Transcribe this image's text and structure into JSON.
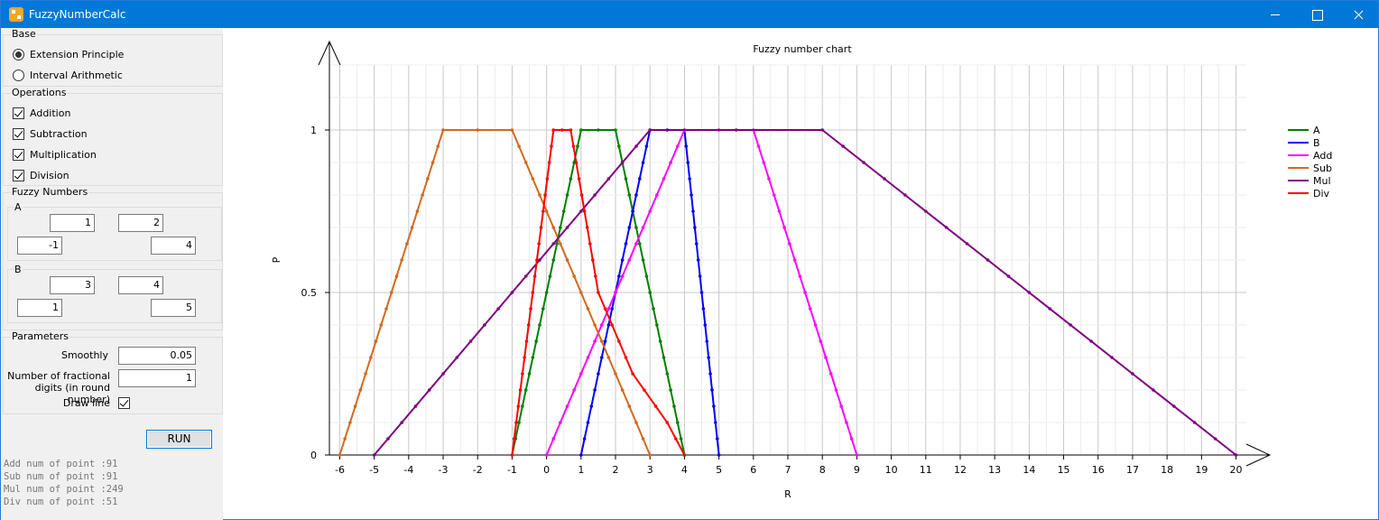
{
  "window": {
    "title": "FuzzyNumberCalc"
  },
  "base": {
    "label": "Base",
    "options": [
      {
        "label": "Extension Principle",
        "selected": true
      },
      {
        "label": "Interval Arithmetic",
        "selected": false
      }
    ]
  },
  "operations": {
    "label": "Operations",
    "items": [
      {
        "label": "Addition",
        "checked": true
      },
      {
        "label": "Subtraction",
        "checked": true
      },
      {
        "label": "Multiplication",
        "checked": true
      },
      {
        "label": "Division",
        "checked": true
      }
    ]
  },
  "fuzzy_numbers": {
    "label": "Fuzzy Numbers",
    "A": {
      "label": "A",
      "core_left": "1",
      "core_right": "2",
      "support_left": "-1",
      "support_right": "4"
    },
    "B": {
      "label": "B",
      "core_left": "3",
      "core_right": "4",
      "support_left": "1",
      "support_right": "5"
    }
  },
  "parameters": {
    "label": "Parameters",
    "smoothly_label": "Smoothly",
    "smoothly_value": "0.05",
    "digits_label_1": "Number of fractional",
    "digits_label_2": "digits (in round number)",
    "digits_value": "1",
    "draw_line_label": "Draw line",
    "draw_line_checked": true
  },
  "run_label": "RUN",
  "log": [
    "Add num of point :91",
    "Sub num of point :91",
    "Mul num of point :249",
    "Div num of point :51"
  ],
  "chart_data": {
    "type": "line",
    "title": "Fuzzy number chart",
    "xlabel": "R",
    "ylabel": "P",
    "xlim": [
      -6.3,
      20.3
    ],
    "ylim": [
      0,
      1.2
    ],
    "x_ticks": [
      "-6",
      "-5",
      "-4",
      "-3",
      "-2",
      "-1",
      "0",
      "1",
      "2",
      "3",
      "4",
      "5",
      "6",
      "7",
      "8",
      "9",
      "10",
      "11",
      "12",
      "13",
      "14",
      "15",
      "16",
      "17",
      "18",
      "19",
      "20"
    ],
    "y_ticks": [
      "0",
      "0.5",
      "1"
    ],
    "grid": true,
    "legend_position": "top-right",
    "series": [
      {
        "name": "A",
        "color": "#008000",
        "x": [
          -1,
          1,
          2,
          4
        ],
        "y": [
          0,
          1,
          1,
          0
        ]
      },
      {
        "name": "B",
        "color": "#0000ff",
        "x": [
          1,
          3,
          4,
          5
        ],
        "y": [
          0,
          1,
          1,
          0
        ]
      },
      {
        "name": "Add",
        "color": "#ff00ff",
        "x": [
          0,
          4,
          6,
          9
        ],
        "y": [
          0,
          1,
          1,
          0
        ]
      },
      {
        "name": "Sub",
        "color": "#d2691e",
        "x": [
          -6,
          -3,
          -1,
          3
        ],
        "y": [
          0,
          1,
          1,
          0
        ]
      },
      {
        "name": "Mul",
        "color": "#800080",
        "x": [
          -5,
          3,
          8,
          20
        ],
        "y": [
          0,
          1,
          1,
          0
        ]
      },
      {
        "name": "Div",
        "color": "#ff0000",
        "x": [
          -1,
          0.2,
          0.7,
          1.5,
          2.5,
          3.5,
          4
        ],
        "y": [
          0,
          1,
          1,
          0.5,
          0.25,
          0.1,
          0
        ]
      }
    ]
  }
}
